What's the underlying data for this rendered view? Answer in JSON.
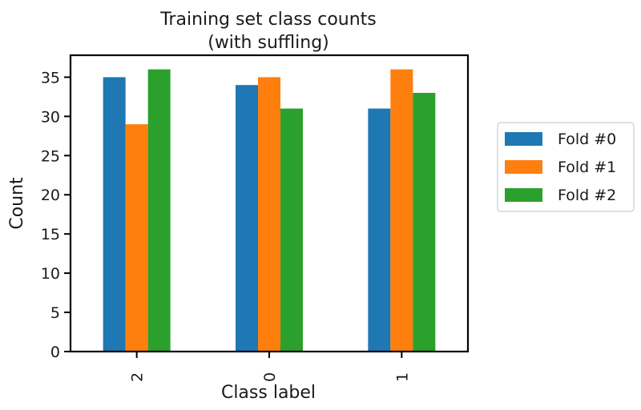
{
  "chart_data": {
    "type": "bar",
    "title_line1": "Training set class counts",
    "title_line2": "(with suffling)",
    "xlabel": "Class label",
    "ylabel": "Count",
    "categories": [
      "2",
      "0",
      "1"
    ],
    "series": [
      {
        "name": "Fold #0",
        "values": [
          35,
          34,
          31
        ],
        "color": "#1f77b4"
      },
      {
        "name": "Fold #1",
        "values": [
          29,
          35,
          36
        ],
        "color": "#ff7f0e"
      },
      {
        "name": "Fold #2",
        "values": [
          36,
          31,
          33
        ],
        "color": "#2ca02c"
      }
    ],
    "ylim": [
      0,
      37.8
    ],
    "yticks": [
      0,
      5,
      10,
      15,
      20,
      25,
      30,
      35
    ],
    "grid": false,
    "legend_position": "right"
  }
}
